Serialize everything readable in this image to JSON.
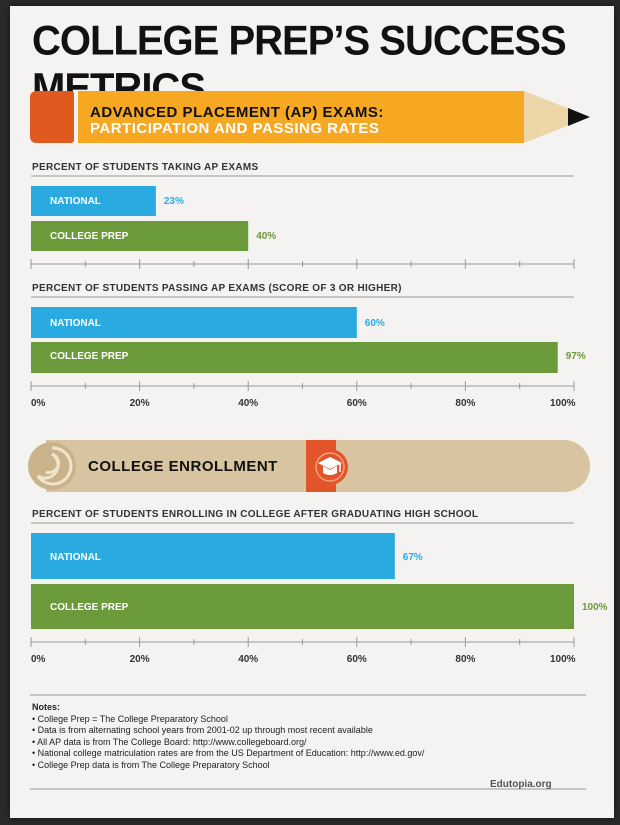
{
  "title": "College Prep’s Success Metrics",
  "colors": {
    "national": "#29abe2",
    "college_prep": "#6b9a3a",
    "pencil_body": "#f7a823",
    "pencil_cap": "#e05a1f",
    "scroll": "#d8c4a1",
    "seal": "#e2542a"
  },
  "banners": {
    "ap": {
      "line1": "Advanced Placement (AP) Exams:",
      "line2": "Participation and Passing Rates"
    },
    "enrollment": {
      "label": "College Enrollment",
      "icon": "graduation-cap-icon"
    }
  },
  "chart_data": [
    {
      "type": "bar",
      "orientation": "horizontal",
      "title": "Percent of Students Taking AP Exams",
      "categories": [
        "National",
        "College Prep"
      ],
      "values": [
        23,
        40
      ],
      "value_labels": [
        "23%",
        "40%"
      ],
      "xlim": [
        0,
        100
      ]
    },
    {
      "type": "bar",
      "orientation": "horizontal",
      "title": "Percent of Students Passing AP Exams (Score of 3 or Higher)",
      "categories": [
        "National",
        "College Prep"
      ],
      "values": [
        60,
        97
      ],
      "value_labels": [
        "60%",
        "97%"
      ],
      "xlim": [
        0,
        100
      ],
      "ticks": [
        "0%",
        "20%",
        "40%",
        "60%",
        "80%",
        "100%"
      ]
    },
    {
      "type": "bar",
      "orientation": "horizontal",
      "title": "Percent of Students Enrolling in College After Graduating High School",
      "categories": [
        "National",
        "College Prep"
      ],
      "values": [
        67,
        100
      ],
      "value_labels": [
        "67%",
        "100%"
      ],
      "xlim": [
        0,
        100
      ],
      "ticks": [
        "0%",
        "20%",
        "40%",
        "60%",
        "80%",
        "100%"
      ]
    }
  ],
  "notes": {
    "heading": "Notes:",
    "items": [
      "• College Prep = The College Preparatory School",
      "• Data is from alternating school years from 2001-02 up through most recent available",
      "• All AP data is from The College Board: http://www.collegeboard.org/",
      "• National college matriculation rates are from the US Department of Education: http://www.ed.gov/",
      "• College Prep data is from The College Preparatory School"
    ]
  },
  "credit": "Edutopia.org"
}
